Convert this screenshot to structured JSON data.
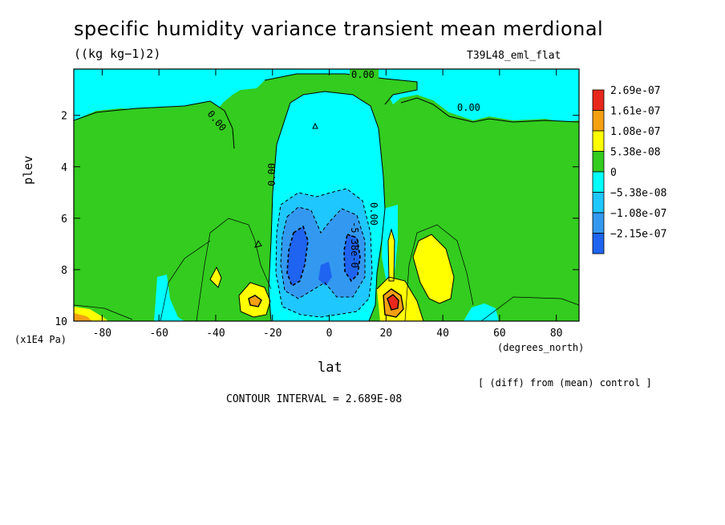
{
  "chart_data": {
    "type": "heatmap",
    "title": "specific humidity variance transient mean merdional",
    "units": "((kg kg−1)2)",
    "experiment": "T39L48_eml_flat",
    "xlabel": "lat",
    "xunit": "(degrees_north)",
    "ylabel": "plev",
    "yunit": "(x1E4 Pa)",
    "xlim": [
      -90,
      88
    ],
    "ylim": [
      10,
      0.2
    ],
    "x_ticks": [
      "-80",
      "-60",
      "-40",
      "-20",
      "0",
      "20",
      "40",
      "60",
      "80"
    ],
    "y_ticks": [
      "2",
      "4",
      "6",
      "8",
      "10"
    ],
    "note": "[ (diff) from (mean) control ]",
    "contour_interval": "CONTOUR INTERVAL = 2.689E-08",
    "legend": {
      "position": "right",
      "labels": [
        "2.69e-07",
        "1.61e-07",
        "1.08e-07",
        "5.38e-08",
        "0",
        "−5.38e-08",
        "−1.08e-07",
        "−2.15e-07"
      ],
      "colors": [
        "#e8281c",
        "#f5a013",
        "#ffff00",
        "#33cc1f",
        "#00ffff",
        "#1fc7ff",
        "#3399f0",
        "#1e64f0"
      ]
    },
    "contour_labels": [
      "0.00",
      "0.00",
      "0.00",
      "0.00",
      "0.00",
      "-5.38e-0"
    ]
  }
}
